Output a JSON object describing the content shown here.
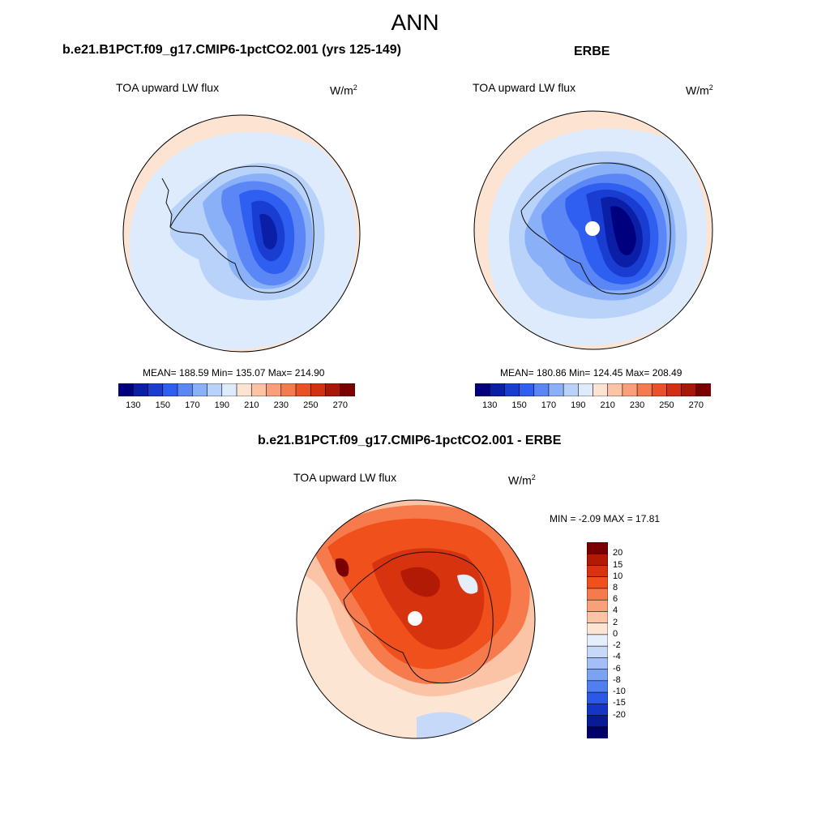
{
  "figure": {
    "title": "ANN"
  },
  "panels": [
    {
      "id": "model",
      "title": "b.e21.B1PCT.f09_g17.CMIP6-1pctCO2.001 (yrs 125-149)",
      "variable": "TOA upward LW flux",
      "units": "W/m",
      "units_sup": "2",
      "stats": "MEAN= 188.59  Min= 135.07  Max= 214.90",
      "projection": "south-polar-stereographic",
      "colorbar": {
        "orientation": "horizontal",
        "labels": [
          "130",
          "150",
          "170",
          "190",
          "210",
          "230",
          "250",
          "270"
        ]
      }
    },
    {
      "id": "obs",
      "title": "ERBE",
      "variable": "TOA upward LW flux",
      "units": "W/m",
      "units_sup": "2",
      "stats": "MEAN= 180.86  Min= 124.45  Max= 208.49",
      "projection": "south-polar-stereographic",
      "colorbar": {
        "orientation": "horizontal",
        "labels": [
          "130",
          "150",
          "170",
          "190",
          "210",
          "230",
          "250",
          "270"
        ]
      }
    },
    {
      "id": "diff",
      "title": "b.e21.B1PCT.f09_g17.CMIP6-1pctCO2.001 - ERBE",
      "variable": "TOA upward LW flux",
      "units": "W/m",
      "units_sup": "2",
      "stats": "MIN =  -2.09 MAX =  17.81",
      "projection": "south-polar-stereographic",
      "colorbar": {
        "orientation": "vertical",
        "labels": [
          "20",
          "15",
          "10",
          "8",
          "6",
          "4",
          "2",
          "0",
          "-2",
          "-4",
          "-6",
          "-8",
          "-10",
          "-15",
          "-20"
        ]
      }
    }
  ],
  "colors": {
    "abs_scale": [
      "#00007f",
      "#0a1fa6",
      "#1a3dd1",
      "#2f5ff0",
      "#5b86f5",
      "#8ab0f7",
      "#b9d2fa",
      "#ddebfd",
      "#fde3d2",
      "#fcc3a5",
      "#f9a07a",
      "#f47a4f",
      "#ea5128",
      "#d32f12",
      "#a81708",
      "#7a0000"
    ],
    "diff_scale": [
      "#7a0000",
      "#b21a05",
      "#d8330f",
      "#f0501c",
      "#f67a4c",
      "#f9a07a",
      "#fcc4a6",
      "#fde5d4",
      "#e5eefb",
      "#c6d9f8",
      "#a3c0f6",
      "#7ba3f2",
      "#4f7ff0",
      "#2b58e6",
      "#1536c5",
      "#081a96",
      "#00006b"
    ]
  }
}
